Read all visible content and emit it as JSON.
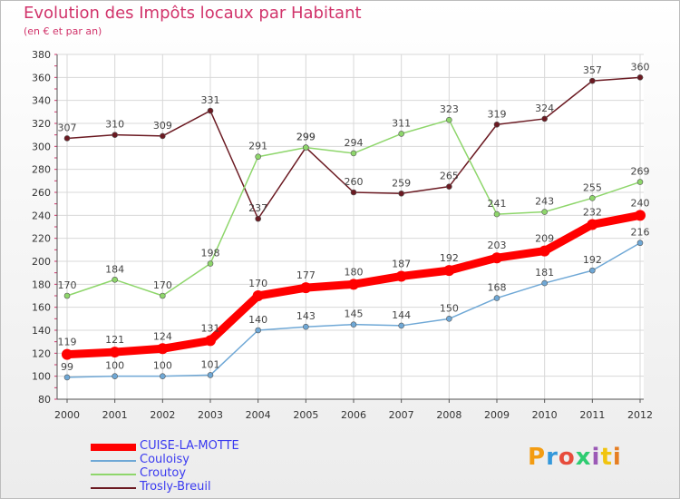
{
  "header": {
    "title": "Evolution des Impôts locaux par Habitant",
    "subtitle": "(en € et par an)"
  },
  "logo": {
    "text": "Proxiti",
    "colors": [
      "#f39c12",
      "#3498db",
      "#e74c3c",
      "#2ecc71",
      "#9b59b6",
      "#f1c40f",
      "#e67e22"
    ]
  },
  "chart_data": {
    "type": "line",
    "title": "Evolution des Impôts locaux par Habitant",
    "subtitle": "(en € et par an)",
    "xlabel": "",
    "ylabel": "",
    "x": [
      "2000",
      "2001",
      "2002",
      "2003",
      "2004",
      "2005",
      "2006",
      "2007",
      "2008",
      "2009",
      "2010",
      "2011",
      "2012"
    ],
    "ylim": [
      80,
      380
    ],
    "yticks": [
      "80",
      "100",
      "120",
      "140",
      "160",
      "180",
      "200",
      "220",
      "240",
      "260",
      "280",
      "300",
      "320",
      "340",
      "360",
      "380"
    ],
    "grid": true,
    "legend_position": "bottom-left",
    "series": [
      {
        "name": "Trosly-Breuil",
        "color": "#6b1a22",
        "values": [
          307,
          310,
          309,
          331,
          237,
          299,
          260,
          259,
          265,
          319,
          324,
          357,
          360
        ],
        "labels": [
          "307",
          "310",
          "309",
          "331",
          "237",
          "299",
          "260",
          "259",
          "265",
          "319",
          "324",
          "357",
          "360"
        ]
      },
      {
        "name": "Croutoy",
        "color": "#8ed66b",
        "values": [
          170,
          184,
          170,
          198,
          291,
          299,
          294,
          311,
          323,
          241,
          243,
          255,
          269
        ],
        "labels": [
          "170",
          "184",
          "170",
          "198",
          "291",
          "299",
          "294",
          "311",
          "323",
          "241",
          "243",
          "255",
          "269"
        ]
      },
      {
        "name": "Couloisy",
        "color": "#6fa8d6",
        "values": [
          99,
          100,
          100,
          101,
          140,
          143,
          145,
          144,
          150,
          168,
          181,
          192,
          216
        ],
        "labels": [
          "99",
          "100",
          "100",
          "101",
          "140",
          "143",
          "145",
          "144",
          "150",
          "168",
          "181",
          "192",
          "216"
        ]
      },
      {
        "name": "CUISE-LA-MOTTE",
        "color": "#ff0000",
        "values": [
          119,
          121,
          124,
          131,
          170,
          177,
          180,
          187,
          192,
          203,
          209,
          232,
          240
        ],
        "labels": [
          "119",
          "121",
          "124",
          "131",
          "170",
          "177",
          "180",
          "187",
          "192",
          "203",
          "209",
          "232",
          "240"
        ]
      }
    ],
    "legend": [
      {
        "name": "CUISE-LA-MOTTE",
        "color": "#ff0000"
      },
      {
        "name": "Couloisy",
        "color": "#6fa8d6"
      },
      {
        "name": "Croutoy",
        "color": "#8ed66b"
      },
      {
        "name": "Trosly-Breuil",
        "color": "#6b1a22"
      }
    ]
  }
}
